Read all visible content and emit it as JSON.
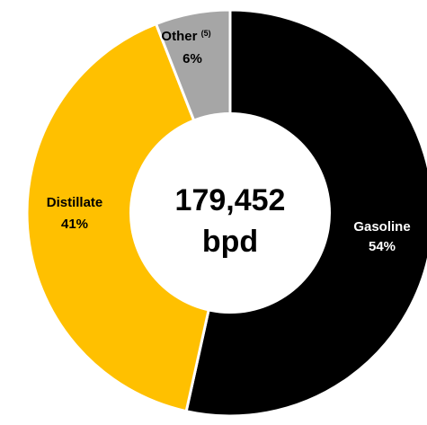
{
  "chart_data": {
    "type": "pie",
    "donut": true,
    "center_text": {
      "line1": "179,452",
      "line2": "bpd"
    },
    "slices": [
      {
        "name": "Gasoline",
        "value": 54,
        "label": "54%",
        "color": "#000000",
        "text_color": "#ffffff"
      },
      {
        "name": "Distillate",
        "value": 41,
        "label": "41%",
        "color": "#ffc000",
        "text_color": "#000000"
      },
      {
        "name": "Other",
        "superscript": "(5)",
        "value": 6,
        "label": "6%",
        "color": "#a6a6a6",
        "text_color": "#000000"
      }
    ]
  }
}
